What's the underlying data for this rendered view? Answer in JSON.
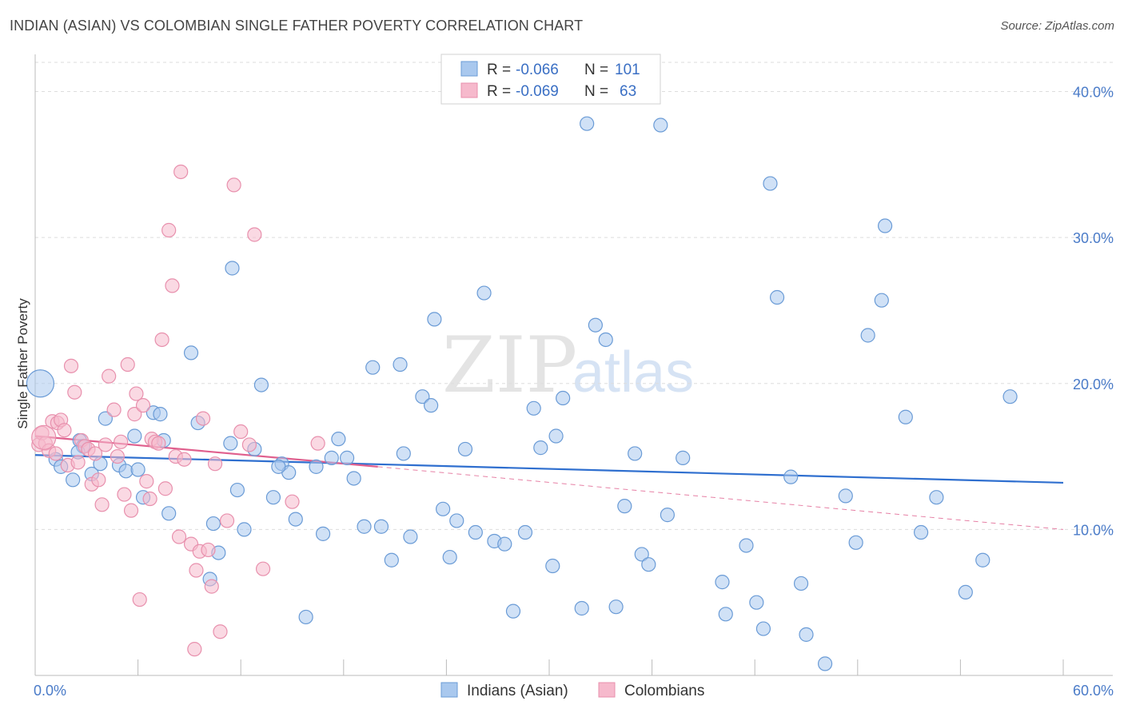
{
  "title": "INDIAN (ASIAN) VS COLOMBIAN SINGLE FATHER POVERTY CORRELATION CHART",
  "source": "Source: ZipAtlas.com",
  "watermark": {
    "zip": "ZIP",
    "atlas": "atlas"
  },
  "colors": {
    "indian_fill": "#a9c8ee",
    "indian_stroke": "#6a9bd6",
    "indian_line": "#2f6fcf",
    "colombian_fill": "#f6b9cc",
    "colombian_stroke": "#e890ad",
    "colombian_line": "#e0608e",
    "grid": "#dddddd",
    "tick_text": "#4a7bc8"
  },
  "legend": {
    "rows": [
      {
        "r_label": "R =",
        "r_value": "-0.066",
        "n_label": "N =",
        "n_value": "101"
      },
      {
        "r_label": "R =",
        "r_value": "-0.069",
        "n_label": "N =",
        "n_value": "63"
      }
    ]
  },
  "chart_data": {
    "type": "scatter",
    "title": "INDIAN (ASIAN) VS COLOMBIAN SINGLE FATHER POVERTY CORRELATION CHART",
    "xlabel": "",
    "ylabel": "Single Father Poverty",
    "xlim": [
      0,
      60
    ],
    "ylim": [
      0,
      42
    ],
    "x_tick_labels": [
      "0.0%",
      "60.0%"
    ],
    "y_tick_labels": [
      "10.0%",
      "20.0%",
      "30.0%",
      "40.0%"
    ],
    "y_tick_values": [
      10,
      20,
      30,
      40
    ],
    "grid": "horizontal dashed",
    "legend_position": "top-center",
    "series": [
      {
        "name": "Indians (Asian)",
        "trend": {
          "x": [
            0,
            60
          ],
          "y": [
            15.1,
            13.2
          ]
        },
        "points": [
          [
            0.3,
            20.0
          ],
          [
            1.2,
            14.8
          ],
          [
            1.5,
            14.3
          ],
          [
            2.2,
            13.4
          ],
          [
            2.6,
            16.1
          ],
          [
            2.8,
            15.7
          ],
          [
            3.3,
            13.8
          ],
          [
            3.8,
            14.5
          ],
          [
            4.1,
            17.6
          ],
          [
            4.9,
            14.4
          ],
          [
            5.3,
            14.0
          ],
          [
            5.8,
            16.4
          ],
          [
            6.0,
            14.1
          ],
          [
            6.3,
            12.2
          ],
          [
            6.9,
            18.0
          ],
          [
            7.3,
            17.9
          ],
          [
            7.5,
            16.1
          ],
          [
            7.8,
            11.1
          ],
          [
            9.1,
            22.1
          ],
          [
            9.5,
            17.3
          ],
          [
            10.2,
            6.6
          ],
          [
            10.4,
            10.4
          ],
          [
            10.7,
            8.4
          ],
          [
            11.4,
            15.9
          ],
          [
            11.5,
            27.9
          ],
          [
            11.8,
            12.7
          ],
          [
            12.2,
            10.0
          ],
          [
            12.8,
            15.5
          ],
          [
            13.2,
            19.9
          ],
          [
            13.9,
            12.2
          ],
          [
            14.4,
            14.5
          ],
          [
            14.8,
            13.9
          ],
          [
            15.2,
            10.7
          ],
          [
            15.8,
            4.0
          ],
          [
            16.4,
            14.3
          ],
          [
            16.8,
            9.7
          ],
          [
            17.3,
            14.9
          ],
          [
            17.7,
            16.2
          ],
          [
            18.2,
            14.9
          ],
          [
            18.6,
            13.5
          ],
          [
            19.2,
            10.2
          ],
          [
            19.7,
            21.1
          ],
          [
            20.2,
            10.2
          ],
          [
            20.8,
            7.9
          ],
          [
            21.3,
            21.3
          ],
          [
            21.5,
            15.2
          ],
          [
            21.9,
            9.5
          ],
          [
            22.6,
            19.1
          ],
          [
            23.1,
            18.5
          ],
          [
            23.3,
            24.4
          ],
          [
            23.8,
            11.4
          ],
          [
            24.2,
            8.1
          ],
          [
            24.6,
            10.6
          ],
          [
            25.1,
            15.5
          ],
          [
            25.7,
            9.8
          ],
          [
            26.2,
            26.2
          ],
          [
            26.8,
            9.2
          ],
          [
            27.4,
            9.0
          ],
          [
            27.9,
            4.4
          ],
          [
            28.6,
            9.8
          ],
          [
            29.1,
            18.3
          ],
          [
            29.5,
            15.6
          ],
          [
            30.2,
            7.5
          ],
          [
            30.4,
            16.4
          ],
          [
            30.8,
            19.0
          ],
          [
            31.9,
            4.6
          ],
          [
            32.2,
            37.8
          ],
          [
            32.7,
            24.0
          ],
          [
            33.3,
            23.0
          ],
          [
            33.9,
            4.7
          ],
          [
            34.4,
            11.6
          ],
          [
            35.0,
            15.2
          ],
          [
            35.4,
            8.3
          ],
          [
            35.8,
            7.6
          ],
          [
            36.5,
            37.7
          ],
          [
            36.9,
            11.0
          ],
          [
            37.8,
            14.9
          ],
          [
            40.1,
            6.4
          ],
          [
            40.3,
            4.2
          ],
          [
            41.5,
            8.9
          ],
          [
            42.1,
            5.0
          ],
          [
            42.5,
            3.2
          ],
          [
            42.9,
            33.7
          ],
          [
            43.3,
            25.9
          ],
          [
            44.1,
            13.6
          ],
          [
            44.7,
            6.3
          ],
          [
            45.0,
            2.8
          ],
          [
            46.1,
            0.8
          ],
          [
            47.3,
            12.3
          ],
          [
            47.9,
            9.1
          ],
          [
            48.6,
            23.3
          ],
          [
            49.4,
            25.7
          ],
          [
            49.6,
            30.8
          ],
          [
            50.8,
            17.7
          ],
          [
            51.7,
            9.8
          ],
          [
            52.6,
            12.2
          ],
          [
            54.3,
            5.7
          ],
          [
            55.3,
            7.9
          ],
          [
            56.9,
            19.1
          ],
          [
            14.2,
            14.3
          ],
          [
            2.5,
            15.3
          ]
        ]
      },
      {
        "name": "Colombians",
        "trend": {
          "x": [
            0,
            20
          ],
          "y": [
            16.4,
            14.3
          ]
        },
        "trend_extended": {
          "x": [
            20,
            60
          ],
          "y": [
            14.3,
            10.0
          ]
        },
        "points": [
          [
            0.2,
            15.8
          ],
          [
            0.4,
            16.6
          ],
          [
            0.6,
            15.9
          ],
          [
            0.8,
            15.4
          ],
          [
            1.0,
            17.4
          ],
          [
            1.2,
            15.2
          ],
          [
            1.3,
            17.3
          ],
          [
            1.5,
            17.5
          ],
          [
            1.7,
            16.8
          ],
          [
            1.9,
            14.4
          ],
          [
            2.1,
            21.2
          ],
          [
            2.3,
            19.4
          ],
          [
            2.5,
            14.6
          ],
          [
            2.7,
            16.1
          ],
          [
            2.9,
            15.7
          ],
          [
            3.1,
            15.5
          ],
          [
            3.3,
            13.1
          ],
          [
            3.5,
            15.2
          ],
          [
            3.7,
            13.4
          ],
          [
            3.9,
            11.7
          ],
          [
            4.1,
            15.8
          ],
          [
            4.3,
            20.5
          ],
          [
            4.6,
            18.2
          ],
          [
            4.8,
            15.0
          ],
          [
            5.0,
            16.0
          ],
          [
            5.2,
            12.4
          ],
          [
            5.4,
            21.3
          ],
          [
            5.6,
            11.3
          ],
          [
            5.8,
            17.9
          ],
          [
            5.9,
            19.3
          ],
          [
            6.1,
            5.2
          ],
          [
            6.3,
            18.5
          ],
          [
            6.5,
            13.3
          ],
          [
            6.7,
            12.1
          ],
          [
            6.8,
            16.2
          ],
          [
            7.0,
            16.0
          ],
          [
            7.2,
            15.9
          ],
          [
            7.4,
            23.0
          ],
          [
            7.6,
            12.8
          ],
          [
            7.8,
            30.5
          ],
          [
            8.0,
            26.7
          ],
          [
            8.2,
            15.0
          ],
          [
            8.4,
            9.5
          ],
          [
            8.5,
            34.5
          ],
          [
            8.7,
            14.8
          ],
          [
            9.1,
            9.0
          ],
          [
            9.3,
            1.8
          ],
          [
            9.4,
            7.2
          ],
          [
            9.6,
            8.5
          ],
          [
            9.8,
            17.6
          ],
          [
            10.1,
            8.6
          ],
          [
            10.3,
            6.1
          ],
          [
            10.5,
            14.5
          ],
          [
            10.8,
            3.0
          ],
          [
            11.2,
            10.6
          ],
          [
            11.6,
            33.6
          ],
          [
            12.0,
            16.7
          ],
          [
            12.5,
            15.8
          ],
          [
            12.8,
            30.2
          ],
          [
            13.3,
            7.3
          ],
          [
            15.0,
            11.9
          ],
          [
            16.5,
            15.9
          ],
          [
            0.5,
            16.3
          ]
        ]
      }
    ]
  },
  "bottom_legend": [
    "Indians (Asian)",
    "Colombians"
  ]
}
